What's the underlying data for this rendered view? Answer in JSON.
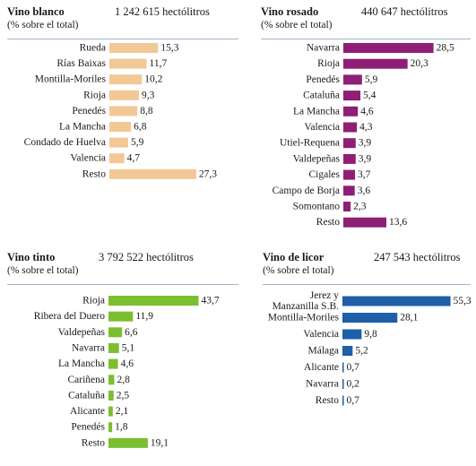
{
  "chart_data": [
    {
      "type": "bar",
      "title": "Vino blanco",
      "total": "1 242 615 hectólitros",
      "subtitle": "(% sobre el total)",
      "color": "#f2c896",
      "categories": [
        "Rueda",
        "Rías Baixas",
        "Montilla-Moriles",
        "Rioja",
        "Penedés",
        "La Mancha",
        "Condado de Huelva",
        "Valencia",
        "Resto"
      ],
      "values": [
        15.3,
        11.7,
        10.2,
        9.3,
        8.8,
        6.8,
        5.9,
        4.7,
        27.3
      ],
      "value_labels": [
        "15,3",
        "11,7",
        "10,2",
        "9,3",
        "8,8",
        "6,8",
        "5,9",
        "4,7",
        "27,3"
      ]
    },
    {
      "type": "bar",
      "title": "Vino rosado",
      "total": "440 647 hectólitros",
      "subtitle": "(% sobre el total)",
      "color": "#8e1f74",
      "categories": [
        "Navarra",
        "Rioja",
        "Penedés",
        "Cataluña",
        "La Mancha",
        "Valencia",
        "Utiel-Requena",
        "Valdepeñas",
        "Cigales",
        "Campo de Borja",
        "Somontano",
        "Resto"
      ],
      "values": [
        28.5,
        20.3,
        5.9,
        5.4,
        4.6,
        4.3,
        3.9,
        3.9,
        3.7,
        3.6,
        2.3,
        13.6
      ],
      "value_labels": [
        "28,5",
        "20,3",
        "5,9",
        "5,4",
        "4,6",
        "4,3",
        "3,9",
        "3,9",
        "3,7",
        "3,6",
        "2,3",
        "13,6"
      ]
    },
    {
      "type": "bar",
      "title": "Vino tinto",
      "total": "3 792 522 hectólitros",
      "subtitle": "(% sobre el total)",
      "color": "#7cbf2e",
      "categories": [
        "Rioja",
        "Ribera del Duero",
        "Valdepeñas",
        "Navarra",
        "La Mancha",
        "Cariñena",
        "Cataluña",
        "Alicante",
        "Penedés",
        "Resto"
      ],
      "values": [
        43.7,
        11.9,
        6.6,
        5.1,
        4.6,
        2.8,
        2.5,
        2.1,
        1.8,
        19.1
      ],
      "value_labels": [
        "43,7",
        "11,9",
        "6,6",
        "5,1",
        "4,6",
        "2,8",
        "2,5",
        "2,1",
        "1,8",
        "19,1"
      ]
    },
    {
      "type": "bar",
      "title": "Vino de licor",
      "total": "247 543 hectólitros",
      "subtitle": "(% sobre el total)",
      "color": "#1f5ea8",
      "categories": [
        "Jerez y Manzanilla S.B.",
        "Montilla-Moriles",
        "Valencia",
        "Málaga",
        "Alicante",
        "Navarra",
        "Resto"
      ],
      "category_lines": [
        [
          "Jerez y",
          "Manzanilla S.B."
        ],
        [
          "Montilla-Moriles"
        ],
        [
          "Valencia"
        ],
        [
          "Málaga"
        ],
        [
          "Alicante"
        ],
        [
          "Navarra"
        ],
        [
          "Resto"
        ]
      ],
      "values": [
        55.3,
        28.1,
        9.8,
        5.2,
        0.7,
        0.2,
        0.7
      ],
      "value_labels": [
        "55,3",
        "28,1",
        "9,8",
        "5,2",
        "0,7",
        "0,2",
        "0,7"
      ]
    }
  ]
}
